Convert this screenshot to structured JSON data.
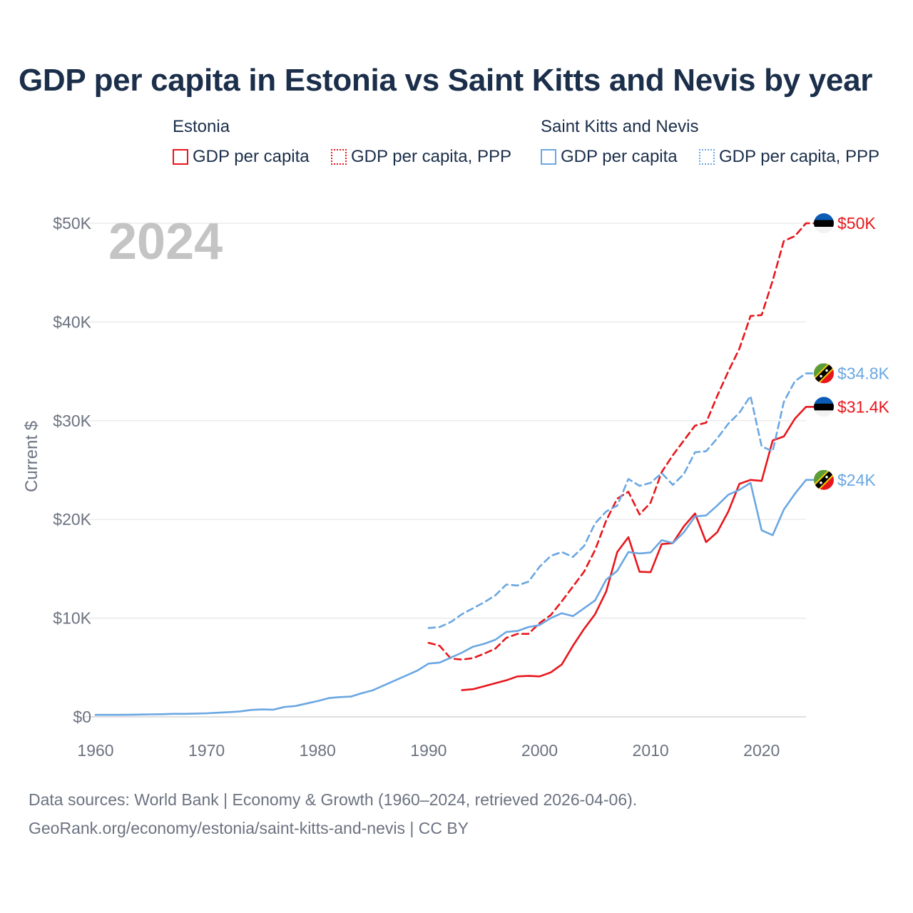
{
  "title": "GDP per capita in Estonia vs Saint Kitts and Nevis by year",
  "legend": {
    "groups": [
      {
        "name": "Estonia",
        "items": [
          {
            "label": "GDP per capita",
            "color": "#e8161c",
            "style": "solid"
          },
          {
            "label": "GDP per capita, PPP",
            "color": "#e8161c",
            "style": "dotted"
          }
        ]
      },
      {
        "name": "Saint Kitts and Nevis",
        "items": [
          {
            "label": "GDP per capita",
            "color": "#6aa7e2",
            "style": "solid"
          },
          {
            "label": "GDP per capita, PPP",
            "color": "#6aa7e2",
            "style": "dotted"
          }
        ]
      }
    ]
  },
  "year_watermark": "2024",
  "y_axis_title": "Current $",
  "end_labels": [
    {
      "text": "$50K",
      "color": "#e8161c",
      "value": 50000,
      "flag": "estonia-flag-icon"
    },
    {
      "text": "$34.8K",
      "color": "#6aa7e2",
      "value": 34800,
      "flag": "saint-kitts-flag-icon"
    },
    {
      "text": "$31.4K",
      "color": "#e8161c",
      "value": 31400,
      "flag": "estonia-flag-icon"
    },
    {
      "text": "$24K",
      "color": "#6aa7e2",
      "value": 24000,
      "flag": "saint-kitts-flag-icon"
    }
  ],
  "source": {
    "line1": "Data sources: World Bank | Economy & Growth (1960–2024, retrieved 2026-04-06).",
    "line2": "GeoRank.org/economy/estonia/saint-kitts-and-nevis | CC BY"
  },
  "chart_data": {
    "type": "line",
    "title": "GDP per capita in Estonia vs Saint Kitts and Nevis by year",
    "xlabel": "",
    "ylabel": "Current $",
    "xlim": [
      1960,
      2024
    ],
    "ylim": [
      0,
      50000
    ],
    "grid": true,
    "x_ticks": [
      1960,
      1970,
      1980,
      1990,
      2000,
      2010,
      2020
    ],
    "y_ticks": [
      {
        "value": 0,
        "label": "$0"
      },
      {
        "value": 10000,
        "label": "$10K"
      },
      {
        "value": 20000,
        "label": "$20K"
      },
      {
        "value": 30000,
        "label": "$30K"
      },
      {
        "value": 40000,
        "label": "$40K"
      },
      {
        "value": 50000,
        "label": "$50K"
      }
    ],
    "series": [
      {
        "name": "Estonia GDP per capita, PPP",
        "color": "#e8161c",
        "dash": "dashed",
        "start_year": 1990,
        "values": [
          7500,
          7200,
          5900,
          5800,
          5950,
          6400,
          6900,
          8000,
          8400,
          8400,
          9500,
          10300,
          11700,
          13200,
          14700,
          16900,
          19900,
          22100,
          22800,
          20500,
          21700,
          24800,
          26500,
          28000,
          29500,
          29800,
          32500,
          35000,
          37300,
          40600,
          40700,
          44200,
          48200,
          48700,
          50000,
          50000
        ]
      },
      {
        "name": "Estonia GDP per capita",
        "color": "#e8161c",
        "dash": "solid",
        "start_year": 1993,
        "values": [
          2700,
          2800,
          3100,
          3400,
          3700,
          4100,
          4150,
          4100,
          4500,
          5300,
          7200,
          8900,
          10400,
          12700,
          16700,
          18200,
          14700,
          14650,
          17500,
          17600,
          19300,
          20600,
          17700,
          18700,
          20800,
          23600,
          24000,
          23900,
          28000,
          28400,
          30200,
          31400,
          31400
        ]
      },
      {
        "name": "Saint Kitts and Nevis GDP per capita, PPP",
        "color": "#6aa7e2",
        "dash": "dashed",
        "start_year": 1990,
        "values": [
          9000,
          9100,
          9600,
          10400,
          11000,
          11600,
          12300,
          13400,
          13300,
          13700,
          15200,
          16300,
          16700,
          16200,
          17300,
          19600,
          20800,
          21400,
          24100,
          23400,
          23700,
          24700,
          23500,
          24600,
          26800,
          26900,
          28200,
          29700,
          30800,
          32500,
          27400,
          26900,
          31900,
          34000,
          34800,
          34800
        ]
      },
      {
        "name": "Saint Kitts and Nevis GDP per capita",
        "color": "#6aa7e2",
        "dash": "solid",
        "start_year": 1960,
        "values": [
          200,
          200,
          200,
          210,
          230,
          250,
          270,
          300,
          300,
          330,
          360,
          420,
          480,
          550,
          700,
          750,
          720,
          1000,
          1100,
          1350,
          1600,
          1900,
          2000,
          2050,
          2400,
          2700,
          3200,
          3700,
          4200,
          4700,
          5400,
          5500,
          6000,
          6500,
          7100,
          7400,
          7800,
          8600,
          8700,
          9100,
          9300,
          10000,
          10500,
          10200,
          11000,
          11800,
          13900,
          14800,
          16700,
          16550,
          16650,
          17900,
          17600,
          18700,
          20300,
          20400,
          21400,
          22500,
          23000,
          23700,
          18900,
          18400,
          21000,
          22600,
          24000,
          24000
        ]
      }
    ]
  }
}
